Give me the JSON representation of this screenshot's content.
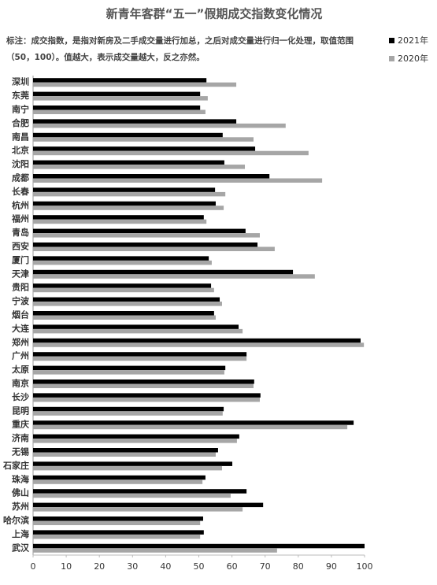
{
  "chart_data": {
    "type": "bar",
    "orientation": "horizontal",
    "title": "新青年客群“五一”假期成交指数变化情况",
    "note": [
      "标注：成交指数，是指对新房及二手成交量进行加总，之后对成交量进行归一化处理，取值范围",
      "（50，100）。值越大，表示成交量越大，反之亦然。"
    ],
    "categories": [
      "深圳",
      "东莞",
      "南宁",
      "合肥",
      "南昌",
      "北京",
      "沈阳",
      "成都",
      "长春",
      "杭州",
      "福州",
      "青岛",
      "西安",
      "厦门",
      "天津",
      "贵阳",
      "宁波",
      "烟台",
      "大连",
      "郑州",
      "广州",
      "太原",
      "南京",
      "长沙",
      "昆明",
      "重庆",
      "济南",
      "无锡",
      "石家庄",
      "珠海",
      "佛山",
      "苏州",
      "哈尔滨",
      "上海",
      "武汉"
    ],
    "series": [
      {
        "name": "2021年",
        "color": "#000000",
        "values": [
          52.3,
          50.4,
          50.4,
          61.3,
          57.2,
          67.0,
          57.7,
          71.3,
          54.9,
          55.1,
          51.5,
          64.1,
          67.7,
          53.0,
          78.4,
          53.7,
          56.3,
          54.6,
          62.0,
          98.8,
          64.4,
          58.0,
          66.7,
          68.6,
          57.5,
          96.7,
          62.2,
          55.8,
          60.1,
          52.0,
          64.4,
          69.4,
          51.3,
          51.5,
          100
        ]
      },
      {
        "name": "2020年",
        "color": "#a6a6a6",
        "values": [
          61.3,
          52.7,
          52.0,
          76.2,
          66.5,
          83.1,
          63.9,
          87.2,
          58.0,
          57.5,
          52.3,
          68.4,
          72.9,
          53.9,
          85.0,
          54.6,
          57.0,
          55.1,
          63.2,
          99.8,
          64.4,
          57.7,
          66.5,
          68.4,
          57.2,
          94.8,
          61.5,
          55.1,
          57.0,
          51.1,
          59.6,
          63.2,
          50.4,
          50.4,
          73.6
        ]
      }
    ],
    "xlim": [
      0,
      100
    ],
    "xticks": [
      0,
      10,
      20,
      30,
      40,
      50,
      60,
      70,
      80,
      90,
      100
    ],
    "grid": false,
    "legend": "top-right"
  }
}
